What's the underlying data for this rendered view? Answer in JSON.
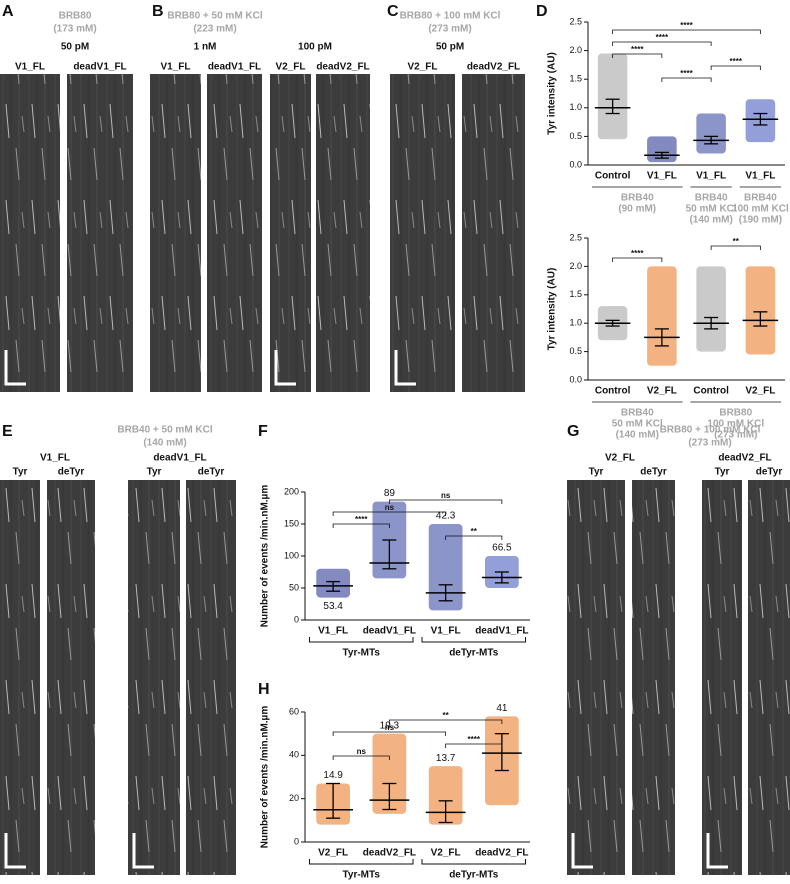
{
  "panels": [
    {
      "letter": "A",
      "buffer": [
        "BRB80",
        "(173 mM)"
      ],
      "conditions": [
        {
          "label": "50 pM",
          "lanes": [
            "V1_FL",
            "deadV1_FL"
          ]
        }
      ]
    },
    {
      "letter": "B",
      "buffer": [
        "BRB80 + 50 mM KCl",
        "(223 mM)"
      ],
      "conditions": [
        {
          "label": "1 nM",
          "lanes": [
            "V1_FL",
            "deadV1_FL"
          ]
        },
        {
          "label": "100 pM",
          "lanes": [
            "V2_FL",
            "deadV2_FL"
          ]
        }
      ]
    },
    {
      "letter": "C",
      "buffer": [
        "BRB80 + 100 mM KCl",
        "(273 mM)"
      ],
      "conditions": [
        {
          "label": "50 pM",
          "lanes": [
            "V2_FL",
            "deadV2_FL"
          ]
        }
      ]
    },
    {
      "letter": "E",
      "buffer": [
        "BRB40 + 50 mM KCl",
        "(140 mM)"
      ],
      "conditions": [
        {
          "label": "V1_FL",
          "lanes": [
            "Tyr",
            "deTyr"
          ]
        },
        {
          "label": "deadV1_FL",
          "lanes": [
            "Tyr",
            "deTyr"
          ]
        }
      ]
    },
    {
      "letter": "G",
      "buffer": [
        "BRB80 + 100 mM KCl",
        "(273 mM)"
      ],
      "conditions": [
        {
          "label": "V2_FL",
          "lanes": [
            "Tyr",
            "deTyr"
          ]
        },
        {
          "label": "deadV2_FL",
          "lanes": [
            "Tyr",
            "deTyr"
          ]
        }
      ]
    }
  ],
  "chart_data": [
    {
      "type": "dot-summary",
      "letter": "D",
      "ylabel": "Tyr intensity (AU)",
      "categories": [
        "Control",
        "V1_FL",
        "V1_FL",
        "V1_FL"
      ],
      "colors": [
        "#9e9e9e",
        "#1c2a8a",
        "#2c3e9e",
        "#3a50b8"
      ],
      "median": [
        1.0,
        0.17,
        0.43,
        0.8
      ],
      "q1": [
        0.9,
        0.12,
        0.37,
        0.7
      ],
      "q3": [
        1.15,
        0.22,
        0.5,
        0.9
      ],
      "min": [
        0.45,
        0.05,
        0.2,
        0.4
      ],
      "max": [
        1.95,
        0.5,
        0.9,
        1.15
      ],
      "ylim": [
        0,
        2.5
      ],
      "yticks": [
        {
          "value": 0,
          "label": "0.0"
        },
        {
          "value": 0.5,
          "label": "0.5"
        },
        {
          "value": 1,
          "label": "1.0"
        },
        {
          "value": 1.5,
          "label": "1.5"
        },
        {
          "value": 2,
          "label": "2.0"
        },
        {
          "value": 2.5,
          "label": "2.5"
        }
      ],
      "groups": [
        {
          "from": 0,
          "to": 1,
          "lines": [
            "BRB40",
            "(90 mM)"
          ]
        },
        {
          "from": 2,
          "to": 2,
          "lines": [
            "BRB40",
            "50 mM KCl",
            "(140 mM)"
          ]
        },
        {
          "from": 3,
          "to": 3,
          "lines": [
            "BRB40",
            "100 mM KCl",
            "(190 mM)"
          ]
        }
      ],
      "group_color": "#a6a6a6",
      "brackets": [
        {
          "from": 1,
          "to": 2,
          "label": "****"
        },
        {
          "from": 2,
          "to": 3,
          "label": "****"
        },
        {
          "from": 0,
          "to": 1,
          "label": "****"
        },
        {
          "from": 0,
          "to": 2,
          "label": "****"
        },
        {
          "from": 0,
          "to": 3,
          "label": "****"
        }
      ]
    },
    {
      "type": "dot-summary",
      "ylabel": "Tyr intensity (AU)",
      "categories": [
        "Control",
        "V2_FL",
        "Control",
        "V2_FL"
      ],
      "colors": [
        "#9e9e9e",
        "#e8731c",
        "#9e9e9e",
        "#e8731c"
      ],
      "median": [
        1.0,
        0.75,
        1.0,
        1.05
      ],
      "q1": [
        0.95,
        0.6,
        0.9,
        0.95
      ],
      "q3": [
        1.05,
        0.9,
        1.1,
        1.2
      ],
      "min": [
        0.7,
        0.25,
        0.5,
        0.45
      ],
      "max": [
        1.3,
        2.0,
        2.0,
        2.0
      ],
      "ylim": [
        0,
        2.5
      ],
      "yticks": [
        {
          "value": 0,
          "label": "0.0"
        },
        {
          "value": 0.5,
          "label": "0.5"
        },
        {
          "value": 1,
          "label": "1.0"
        },
        {
          "value": 1.5,
          "label": "1.5"
        },
        {
          "value": 2,
          "label": "2.0"
        },
        {
          "value": 2.5,
          "label": "2.5"
        }
      ],
      "groups": [
        {
          "from": 0,
          "to": 1,
          "lines": [
            "BRB40",
            "50 mM KCl",
            "(140 mM)"
          ]
        },
        {
          "from": 2,
          "to": 3,
          "lines": [
            "BRB80",
            "100 mM KCl",
            "(273 mM)"
          ]
        }
      ],
      "group_color": "#a6a6a6",
      "brackets": [
        {
          "from": 0,
          "to": 1,
          "label": "****"
        },
        {
          "from": 2,
          "to": 3,
          "label": "**"
        }
      ]
    },
    {
      "type": "dot-summary",
      "letter": "F",
      "ylabel": "Number of events /min.nM.µm",
      "categories": [
        "V1_FL",
        "deadV1_FL",
        "V1_FL",
        "deadV1_FL"
      ],
      "colors": [
        "#1c2a8a",
        "#2c3e9e",
        "#2c3e9e",
        "#3a50b8"
      ],
      "median": [
        53.4,
        89.0,
        42.3,
        66.5
      ],
      "q1": [
        45,
        80,
        30,
        58
      ],
      "q3": [
        60,
        125,
        55,
        75
      ],
      "min": [
        35,
        65,
        15,
        50
      ],
      "max": [
        80,
        185,
        150,
        100
      ],
      "show_medians": true,
      "ylim": [
        0,
        200
      ],
      "yticks": [
        0,
        50,
        100,
        150,
        200
      ],
      "groups": [
        {
          "from": 0,
          "to": 1,
          "lines": [
            "Tyr-MTs"
          ]
        },
        {
          "from": 2,
          "to": 3,
          "lines": [
            "deTyr-MTs"
          ]
        }
      ],
      "group_color": "#111111",
      "brackets": [
        {
          "from": 2,
          "to": 3,
          "label": "**"
        },
        {
          "from": 0,
          "to": 1,
          "label": "****"
        },
        {
          "from": 0,
          "to": 2,
          "label": "ns"
        },
        {
          "from": 1,
          "to": 3,
          "label": "ns"
        }
      ]
    },
    {
      "type": "dot-summary",
      "letter": "H",
      "ylabel": "Number of events /min.nM.µm",
      "categories": [
        "V2_FL",
        "deadV2_FL",
        "V2_FL",
        "deadV2_FL"
      ],
      "colors": [
        "#e8731c",
        "#e8731c",
        "#e8731c",
        "#e8731c"
      ],
      "median": [
        14.9,
        19.3,
        13.7,
        41.0
      ],
      "q1": [
        11,
        15,
        9,
        33
      ],
      "q3": [
        27,
        27,
        19,
        50
      ],
      "min": [
        8,
        13,
        8,
        17
      ],
      "max": [
        27,
        50,
        35,
        58
      ],
      "show_medians": true,
      "ylim": [
        0,
        60
      ],
      "yticks": [
        0,
        20,
        40,
        60
      ],
      "groups": [
        {
          "from": 0,
          "to": 1,
          "lines": [
            "Tyr-MTs"
          ]
        },
        {
          "from": 2,
          "to": 3,
          "lines": [
            "deTyr-MTs"
          ]
        }
      ],
      "group_color": "#111111",
      "brackets": [
        {
          "from": 0,
          "to": 1,
          "label": "ns"
        },
        {
          "from": 2,
          "to": 3,
          "label": "****"
        },
        {
          "from": 0,
          "to": 2,
          "label": "ns"
        },
        {
          "from": 1,
          "to": 3,
          "label": "**"
        }
      ]
    }
  ]
}
